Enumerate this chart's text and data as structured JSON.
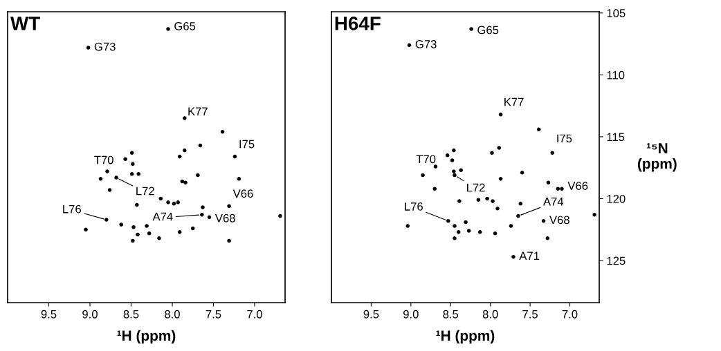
{
  "chart_data": [
    {
      "type": "scatter",
      "title": "WT",
      "xlabel": "¹H (ppm)",
      "xlim": [
        10.0,
        6.63
      ],
      "ylim": [
        128.4,
        104.9
      ],
      "xticks": [
        9.5,
        {
          "value": 9,
          "label": "9.0"
        },
        8.5,
        {
          "value": 8,
          "label": "8.0"
        },
        7.5,
        {
          "value": 7,
          "label": "7.0"
        }
      ],
      "tick_labels": "x",
      "grid": false,
      "legend": false,
      "marker": "circle",
      "series": [
        {
          "color": "#000000",
          "x": [
            8.05,
            9.02,
            7.85,
            7.39,
            7.66,
            7.24,
            8.49,
            8.57,
            8.48,
            7.85,
            7.91,
            8.79,
            8.49,
            8.41,
            8.87,
            8.68,
            7.69,
            7.88,
            7.84,
            7.19,
            8.76,
            8.14,
            8.05,
            7.98,
            7.93,
            8.43,
            7.63,
            7.31,
            7.64,
            7.55,
            6.69,
            8.8,
            8.62,
            8.47,
            8.31,
            9.05,
            8.42,
            8.28,
            8.16,
            7.91,
            7.75,
            8.48,
            7.31
          ],
          "values": [
            106.3,
            107.8,
            113.5,
            114.6,
            115.7,
            116.6,
            116.3,
            116.8,
            117.2,
            116.1,
            116.6,
            117.8,
            118.0,
            118.0,
            118.4,
            118.3,
            118.1,
            118.6,
            118.7,
            118.4,
            119.3,
            120.0,
            120.3,
            120.4,
            120.3,
            120.5,
            120.7,
            120.6,
            121.3,
            121.5,
            121.4,
            121.7,
            122.1,
            122.3,
            122.2,
            122.5,
            122.9,
            122.8,
            123.2,
            122.7,
            122.4,
            123.4,
            123.4
          ]
        }
      ],
      "annotations": [
        {
          "text": "G73",
          "x": 9.02,
          "y": 107.8
        },
        {
          "text": "G65",
          "x": 8.05,
          "y": 106.3
        },
        {
          "text": "K77",
          "x": 7.85,
          "y": 113.5
        },
        {
          "text": "I75",
          "x": 7.24,
          "y": 116.6
        },
        {
          "text": "T70",
          "x": 8.57,
          "y": 116.8
        },
        {
          "text": "L72",
          "x": 8.68,
          "y": 118.3
        },
        {
          "text": "L76",
          "x": 8.8,
          "y": 121.7
        },
        {
          "text": "A74",
          "x": 7.64,
          "y": 121.3
        },
        {
          "text": "V68",
          "x": 7.55,
          "y": 121.5
        },
        {
          "text": "V66",
          "x": 7.31,
          "y": 120.6
        }
      ]
    },
    {
      "type": "scatter",
      "title": "H64F",
      "xlabel": "¹H (ppm)",
      "ylabel": "¹⁵N\n(ppm)",
      "xlim": [
        10.0,
        6.63
      ],
      "ylim": [
        128.4,
        104.9
      ],
      "xticks": [
        9.5,
        {
          "value": 9,
          "label": "9.0"
        },
        8.5,
        {
          "value": 8,
          "label": "8.0"
        },
        7.5,
        {
          "value": 7,
          "label": "7.0"
        }
      ],
      "yticks": [
        105,
        110,
        115,
        120,
        125
      ],
      "grid": false,
      "legend": false,
      "marker": "circle",
      "series": [
        {
          "color": "#000000",
          "x": [
            8.24,
            9.02,
            7.87,
            7.39,
            7.22,
            8.46,
            8.54,
            8.48,
            7.98,
            7.89,
            8.69,
            8.37,
            8.46,
            8.45,
            8.85,
            7.87,
            7.6,
            7.27,
            7.1,
            7.15,
            8.7,
            8.39,
            8.15,
            8.04,
            7.97,
            7.91,
            7.62,
            7.65,
            7.33,
            6.69,
            8.53,
            8.45,
            8.31,
            9.04,
            8.4,
            8.27,
            8.13,
            7.94,
            7.74,
            8.45,
            7.28,
            7.71
          ],
          "values": [
            106.3,
            107.6,
            113.2,
            114.4,
            116.3,
            116.1,
            116.5,
            116.9,
            116.3,
            115.9,
            117.4,
            117.7,
            117.8,
            118.1,
            118.1,
            118.4,
            117.9,
            118.7,
            119.2,
            119.2,
            119.2,
            120.2,
            120.1,
            120.0,
            120.2,
            120.8,
            120.4,
            121.4,
            121.8,
            121.3,
            121.8,
            122.2,
            121.9,
            122.2,
            122.7,
            122.6,
            122.7,
            122.8,
            122.2,
            123.2,
            123.2,
            124.7
          ]
        }
      ],
      "annotations": [
        {
          "text": "G73",
          "x": 9.02,
          "y": 107.6
        },
        {
          "text": "G65",
          "x": 8.24,
          "y": 106.3
        },
        {
          "text": "K77",
          "x": 7.87,
          "y": 113.2
        },
        {
          "text": "I75",
          "x": 7.22,
          "y": 116.3
        },
        {
          "text": "T70",
          "x": 8.54,
          "y": 116.5
        },
        {
          "text": "L72",
          "x": 8.45,
          "y": 118.1
        },
        {
          "text": "L76",
          "x": 8.53,
          "y": 121.8
        },
        {
          "text": "A74",
          "x": 7.65,
          "y": 121.4
        },
        {
          "text": "V68",
          "x": 7.33,
          "y": 121.8
        },
        {
          "text": "V66",
          "x": 7.1,
          "y": 119.2
        },
        {
          "text": "A71",
          "x": 7.71,
          "y": 124.7
        }
      ]
    }
  ]
}
